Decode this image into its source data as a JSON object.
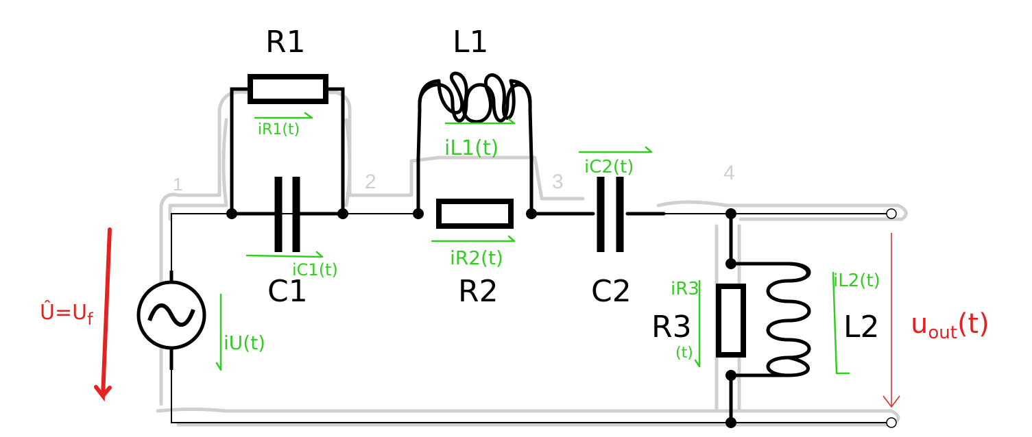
{
  "components": {
    "R1": "R1",
    "L1": "L1",
    "C1": "C1",
    "R2": "R2",
    "C2": "C2",
    "R3": "R3",
    "L2": "L2"
  },
  "node_numbers": [
    "1",
    "2",
    "3",
    "4"
  ],
  "currents": {
    "iR1": "iR1(t)",
    "iL1": "iL1(t)",
    "iC2": "iC2(t)",
    "iC1": "iC1(t)",
    "iR2": "iR2(t)",
    "iU": "iU(t)",
    "iR3_top": "iR3",
    "iR3_bottom": "(t)",
    "iL2": "iL2(t)"
  },
  "source_voltage": "Û=U",
  "source_voltage_sub": "f",
  "output_voltage": {
    "main": "u",
    "sub": "out",
    "suffix": "(t)"
  },
  "colors": {
    "wire": "#000000",
    "annotation_green": "#33cc22",
    "annotation_red": "#e32222",
    "sketch_grey": "#d0d0d0"
  }
}
